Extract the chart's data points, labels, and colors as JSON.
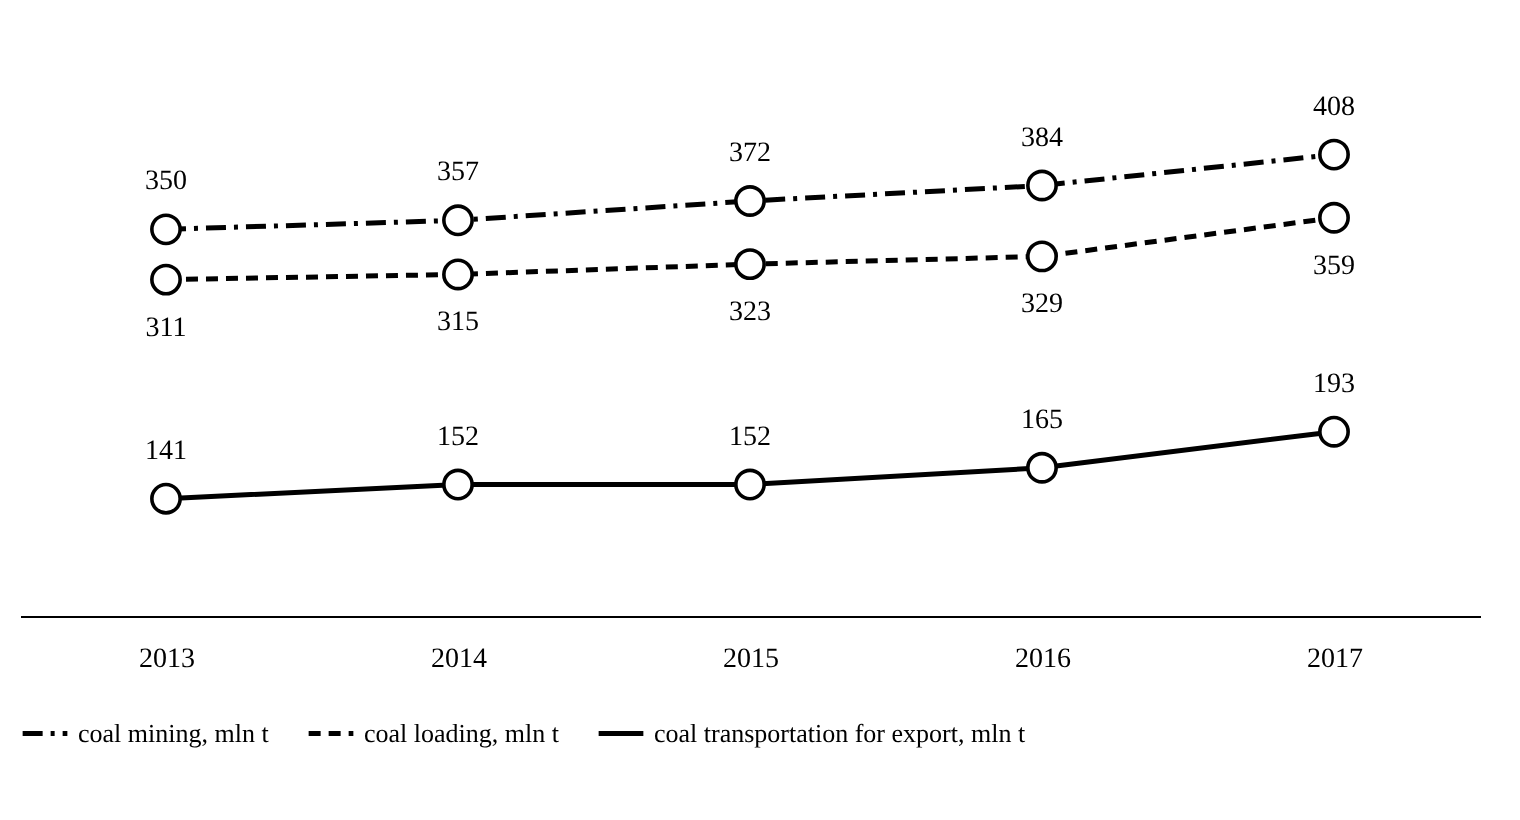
{
  "chart_data": {
    "type": "line",
    "categories": [
      "2013",
      "2014",
      "2015",
      "2016",
      "2017"
    ],
    "series": [
      {
        "name": "coal mining, mln t",
        "color": "#000000",
        "line_style": "dashdot",
        "values": [
          350,
          357,
          372,
          384,
          408
        ]
      },
      {
        "name": "coal loading, mln t",
        "color": "#000000",
        "line_style": "dashed",
        "values": [
          311,
          315,
          323,
          329,
          359
        ]
      },
      {
        "name": "coal transportation for export, mln t",
        "color": "#000000",
        "line_style": "solid",
        "values": [
          141,
          152,
          152,
          165,
          193
        ]
      }
    ],
    "data_labels": true,
    "marker": "circle",
    "legend": "bottom",
    "grid": false
  }
}
